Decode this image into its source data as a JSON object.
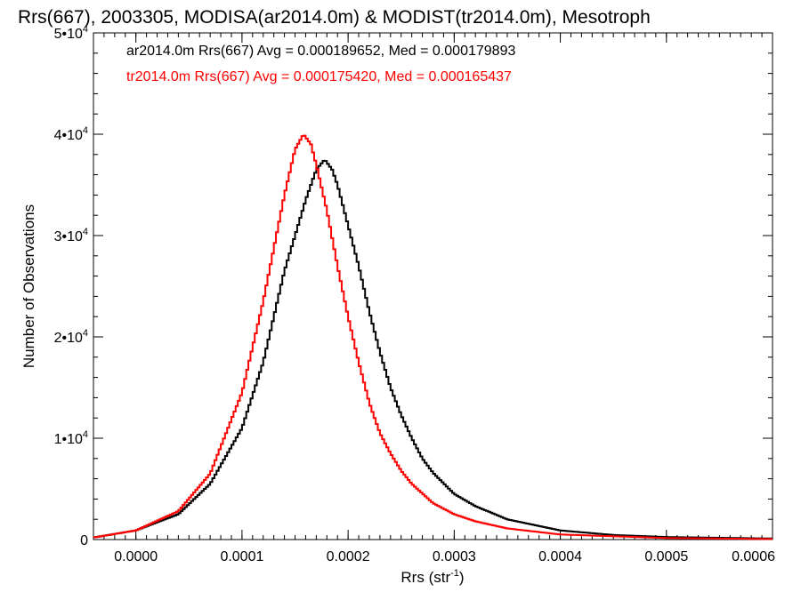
{
  "chart_data": {
    "type": "line",
    "title": "Rrs(667), 2003305, MODISA(ar2014.0m) & MODIST(tr2014.0m), Mesotroph",
    "xlabel_main": "Rrs (str",
    "xlabel_sup": "-1",
    "xlabel_close": ")",
    "ylabel": "Number of Observations",
    "xlim": [
      -4e-05,
      0.0006
    ],
    "ylim": [
      0,
      50000
    ],
    "x_ticks": [
      {
        "value": 0.0,
        "label": "0.0000"
      },
      {
        "value": 0.0001,
        "label": "0.0001"
      },
      {
        "value": 0.0002,
        "label": "0.0002"
      },
      {
        "value": 0.0003,
        "label": "0.0003"
      },
      {
        "value": 0.0004,
        "label": "0.0004"
      },
      {
        "value": 0.0005,
        "label": "0.0005"
      },
      {
        "value": 0.0006,
        "label": "0.0006"
      }
    ],
    "y_ticks": [
      {
        "value": 0,
        "label": "0",
        "exp": ""
      },
      {
        "value": 10000,
        "label": "1•10",
        "exp": "4"
      },
      {
        "value": 20000,
        "label": "2•10",
        "exp": "4"
      },
      {
        "value": 30000,
        "label": "3•10",
        "exp": "4"
      },
      {
        "value": 40000,
        "label": "4•10",
        "exp": "4"
      },
      {
        "value": 50000,
        "label": "5•10",
        "exp": "4"
      }
    ],
    "legend_placement": "top-left",
    "series": [
      {
        "name": "ar2014.0m",
        "legend": "ar2014.0m Rrs(667) Avg = 0.000189652, Med = 0.000179893",
        "color": "#000000",
        "points": [
          [
            -4e-05,
            200
          ],
          [
            0.0,
            900
          ],
          [
            4e-05,
            2500
          ],
          [
            7e-05,
            5500
          ],
          [
            0.0001,
            11000
          ],
          [
            0.00012,
            17500
          ],
          [
            0.00014,
            26500
          ],
          [
            0.00016,
            33500
          ],
          [
            0.00017,
            36500
          ],
          [
            0.000178,
            37500
          ],
          [
            0.000185,
            36500
          ],
          [
            0.00019,
            35000
          ],
          [
            0.0002,
            31000
          ],
          [
            0.00021,
            27000
          ],
          [
            0.00022,
            22500
          ],
          [
            0.00023,
            18500
          ],
          [
            0.00024,
            15000
          ],
          [
            0.00025,
            12300
          ],
          [
            0.00026,
            10000
          ],
          [
            0.00027,
            8000
          ],
          [
            0.00028,
            6600
          ],
          [
            0.0003,
            4500
          ],
          [
            0.00032,
            3300
          ],
          [
            0.00035,
            2000
          ],
          [
            0.0004,
            900
          ],
          [
            0.00045,
            450
          ],
          [
            0.0005,
            250
          ],
          [
            0.0006,
            100
          ]
        ]
      },
      {
        "name": "tr2014.0m",
        "legend": "tr2014.0m Rrs(667) Avg = 0.000175420, Med = 0.000165437",
        "color": "#ff0000",
        "points": [
          [
            -4e-05,
            200
          ],
          [
            0.0,
            900
          ],
          [
            4e-05,
            2800
          ],
          [
            7e-05,
            6500
          ],
          [
            0.0001,
            14500
          ],
          [
            0.00012,
            23500
          ],
          [
            0.00014,
            34000
          ],
          [
            0.00015,
            38500
          ],
          [
            0.000158,
            40000
          ],
          [
            0.000165,
            39000
          ],
          [
            0.00017,
            37000
          ],
          [
            0.00018,
            32500
          ],
          [
            0.00019,
            27000
          ],
          [
            0.0002,
            22000
          ],
          [
            0.00021,
            17500
          ],
          [
            0.00022,
            13500
          ],
          [
            0.00023,
            10500
          ],
          [
            0.00024,
            8500
          ],
          [
            0.00025,
            6800
          ],
          [
            0.00026,
            5500
          ],
          [
            0.00028,
            3600
          ],
          [
            0.0003,
            2500
          ],
          [
            0.00032,
            1800
          ],
          [
            0.00035,
            1100
          ],
          [
            0.0004,
            500
          ],
          [
            0.0005,
            150
          ],
          [
            0.0006,
            50
          ]
        ]
      }
    ]
  }
}
